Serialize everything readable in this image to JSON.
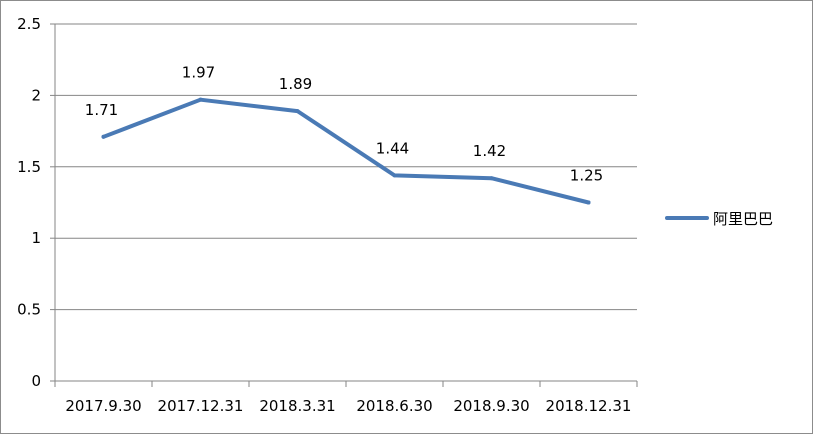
{
  "chart_data": {
    "type": "line",
    "categories": [
      "2017.9.30",
      "2017.12.31",
      "2018.3.31",
      "2018.6.30",
      "2018.9.30",
      "2018.12.31"
    ],
    "series": [
      {
        "name": "阿里巴巴",
        "values": [
          1.71,
          1.97,
          1.89,
          1.44,
          1.42,
          1.25
        ],
        "labels": [
          "1.71",
          "1.97",
          "1.89",
          "1.44",
          "1.42",
          "1.25"
        ],
        "color": "#4a7ab5"
      }
    ],
    "ylim": [
      0,
      2.5
    ],
    "yticks": [
      "0",
      "0.5",
      "1",
      "1.5",
      "2",
      "2.5"
    ],
    "title": "",
    "xlabel": "",
    "ylabel": "",
    "grid": true,
    "legend_position": "right"
  }
}
